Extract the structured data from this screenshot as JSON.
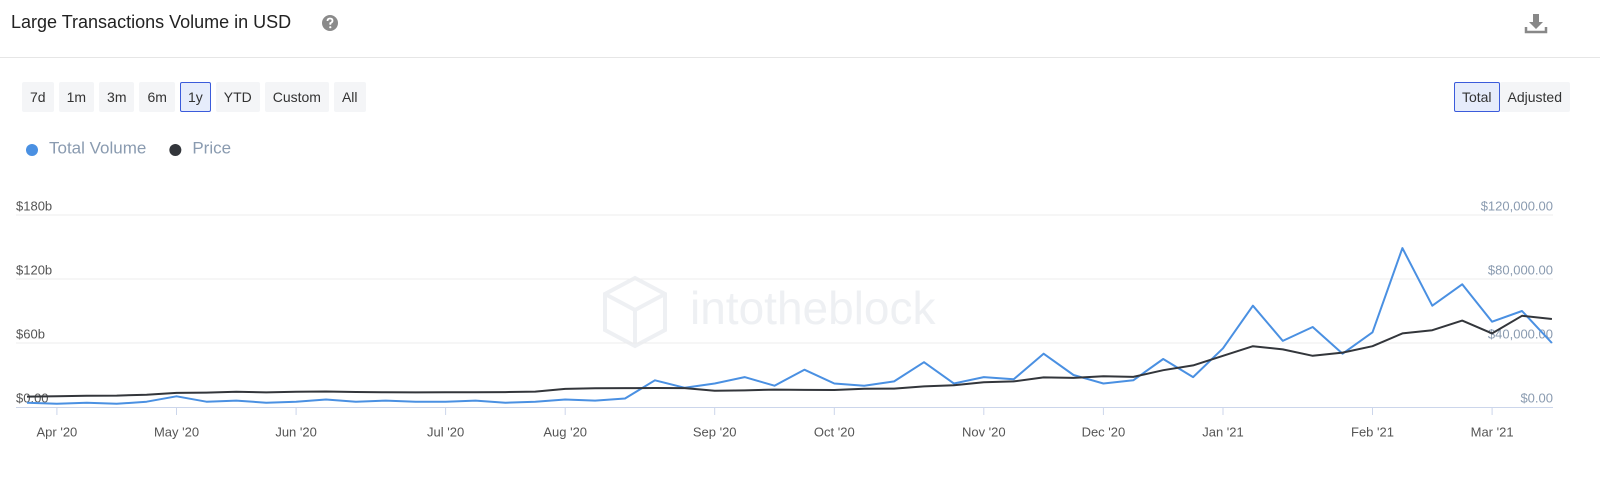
{
  "ui": {
    "title": "Large Transactions Volume in USD",
    "ranges": [
      "7d",
      "1m",
      "3m",
      "6m",
      "1y",
      "YTD",
      "Custom",
      "All"
    ],
    "active_range": 4,
    "modes": [
      "Total",
      "Adjusted"
    ],
    "active_mode": 0,
    "watermark": "intotheblock"
  },
  "chart_data": {
    "type": "line",
    "categories": [
      null,
      "Apr '20",
      null,
      null,
      null,
      "May '20",
      null,
      null,
      null,
      "Jun '20",
      null,
      null,
      null,
      null,
      "Jul '20",
      null,
      null,
      null,
      "Aug '20",
      null,
      null,
      null,
      null,
      "Sep '20",
      null,
      null,
      null,
      "Oct '20",
      null,
      null,
      null,
      null,
      "Nov '20",
      null,
      null,
      null,
      "Dec '20",
      null,
      null,
      null,
      "Jan '21",
      null,
      null,
      null,
      null,
      "Feb '21",
      null,
      null,
      null,
      "Mar '21",
      null,
      null
    ],
    "series": [
      {
        "name": "Total Volume",
        "color": "#4a90e2",
        "axis": "y",
        "values": [
          4,
          3,
          4,
          3,
          5,
          10,
          5,
          6,
          4,
          5,
          7,
          5,
          6,
          5,
          5,
          6,
          4,
          5,
          7,
          6,
          8,
          25,
          18,
          22,
          28,
          20,
          35,
          22,
          20,
          24,
          42,
          22,
          28,
          26,
          50,
          30,
          22,
          25,
          45,
          28,
          55,
          95,
          62,
          75,
          50,
          70,
          149,
          95,
          115,
          80,
          90,
          60
        ]
      },
      {
        "name": "Price",
        "color": "#33363b",
        "axis": "y2",
        "values": [
          6500,
          6700,
          7000,
          7100,
          7700,
          8800,
          9000,
          9500,
          9100,
          9500,
          9700,
          9400,
          9200,
          9100,
          9200,
          9200,
          9300,
          9600,
          11300,
          11700,
          11800,
          11900,
          11800,
          10200,
          10400,
          10900,
          10700,
          10600,
          11400,
          11500,
          12900,
          13600,
          15500,
          16000,
          18500,
          18200,
          19200,
          18800,
          23000,
          26000,
          32000,
          38000,
          36000,
          32000,
          34000,
          38000,
          46000,
          48000,
          54000,
          46000,
          57000,
          55000
        ]
      }
    ],
    "ylim": [
      0,
      180
    ],
    "yticks": [
      {
        "value": 0,
        "label": "$0.00"
      },
      {
        "value": 60,
        "label": "$60b"
      },
      {
        "value": 120,
        "label": "$120b"
      },
      {
        "value": 180,
        "label": "$180b"
      }
    ],
    "y2lim": [
      0,
      120000
    ],
    "y2ticks": [
      {
        "value": 0,
        "label": "$0.00"
      },
      {
        "value": 40000,
        "label": "$40,000.00"
      },
      {
        "value": 80000,
        "label": "$80,000.00"
      },
      {
        "value": 120000,
        "label": "$120,000.00"
      }
    ],
    "grid": true
  }
}
